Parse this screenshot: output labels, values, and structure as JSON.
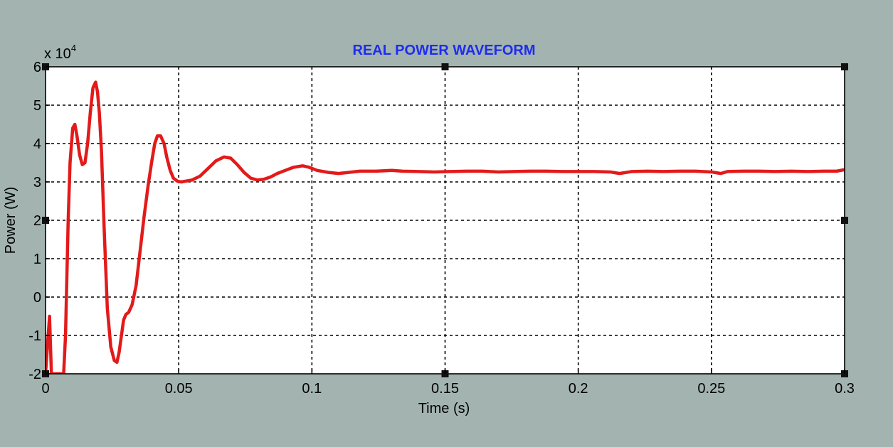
{
  "chart_data": {
    "type": "line",
    "title": "REAL POWER WAVEFORM",
    "title_color": "#1e2cf0",
    "xlabel": "Time (s)",
    "ylabel": "Power (W)",
    "y_multiplier": "x 10",
    "y_exponent": "4",
    "xlim": [
      0,
      0.3
    ],
    "ylim": [
      -2,
      6
    ],
    "x_ticks": [
      "0",
      "0.05",
      "0.1",
      "0.15",
      "0.2",
      "0.25",
      "0.3"
    ],
    "y_ticks": [
      "-2",
      "-1",
      "0",
      "1",
      "2",
      "3",
      "4",
      "5",
      "6"
    ],
    "x_tick_values": [
      0,
      0.05,
      0.1,
      0.15,
      0.2,
      0.25,
      0.3
    ],
    "y_tick_values": [
      -2,
      -1,
      0,
      1,
      2,
      3,
      4,
      5,
      6
    ],
    "grid": true,
    "line_color": "#e31a1a",
    "background_color": "#a3b4b0",
    "axes_color": "#ffffff",
    "series": [
      {
        "x": [
          0,
          0.0015,
          0.0022,
          0.0045,
          0.006,
          0.0068,
          0.0075,
          0.008,
          0.0085,
          0.0092,
          0.0102,
          0.011,
          0.0118,
          0.0128,
          0.0138,
          0.0148,
          0.0158,
          0.0168,
          0.0178,
          0.0188,
          0.0195,
          0.0202,
          0.021,
          0.022,
          0.0232,
          0.0245,
          0.0258,
          0.0268,
          0.0276,
          0.0285,
          0.0293,
          0.0302,
          0.0312,
          0.0325,
          0.034,
          0.0355,
          0.037,
          0.0385,
          0.0398,
          0.041,
          0.042,
          0.0432,
          0.0445,
          0.0455,
          0.0468,
          0.048,
          0.0495,
          0.051,
          0.0525,
          0.055,
          0.058,
          0.061,
          0.064,
          0.067,
          0.0695,
          0.072,
          0.0745,
          0.077,
          0.0795,
          0.082,
          0.0845,
          0.087,
          0.09,
          0.093,
          0.0965,
          0.099,
          0.102,
          0.106,
          0.11,
          0.114,
          0.118,
          0.124,
          0.13,
          0.134,
          0.14,
          0.146,
          0.152,
          0.158,
          0.164,
          0.17,
          0.176,
          0.182,
          0.188,
          0.194,
          0.2,
          0.206,
          0.212,
          0.2155,
          0.22,
          0.226,
          0.232,
          0.238,
          0.244,
          0.25,
          0.2535,
          0.256,
          0.262,
          0.268,
          0.274,
          0.28,
          0.286,
          0.292,
          0.297,
          0.3
        ],
        "y": [
          -2.0,
          -0.5,
          -2.0,
          -2.0,
          -2.0,
          -2.0,
          -1.0,
          0.5,
          2.0,
          3.5,
          4.4,
          4.5,
          4.2,
          3.7,
          3.45,
          3.5,
          4.0,
          4.8,
          5.45,
          5.6,
          5.35,
          4.8,
          3.8,
          1.8,
          -0.3,
          -1.3,
          -1.65,
          -1.7,
          -1.45,
          -1.0,
          -0.6,
          -0.45,
          -0.4,
          -0.2,
          0.3,
          1.2,
          2.1,
          2.9,
          3.5,
          4.0,
          4.2,
          4.2,
          4.0,
          3.65,
          3.3,
          3.1,
          3.02,
          3.0,
          3.02,
          3.05,
          3.15,
          3.35,
          3.55,
          3.65,
          3.62,
          3.45,
          3.25,
          3.1,
          3.05,
          3.07,
          3.13,
          3.22,
          3.3,
          3.38,
          3.42,
          3.38,
          3.3,
          3.25,
          3.22,
          3.25,
          3.28,
          3.28,
          3.3,
          3.28,
          3.27,
          3.26,
          3.27,
          3.28,
          3.28,
          3.26,
          3.27,
          3.28,
          3.28,
          3.27,
          3.27,
          3.27,
          3.26,
          3.22,
          3.27,
          3.28,
          3.27,
          3.28,
          3.28,
          3.26,
          3.22,
          3.27,
          3.28,
          3.28,
          3.27,
          3.28,
          3.27,
          3.28,
          3.28,
          3.32
        ]
      }
    ]
  }
}
